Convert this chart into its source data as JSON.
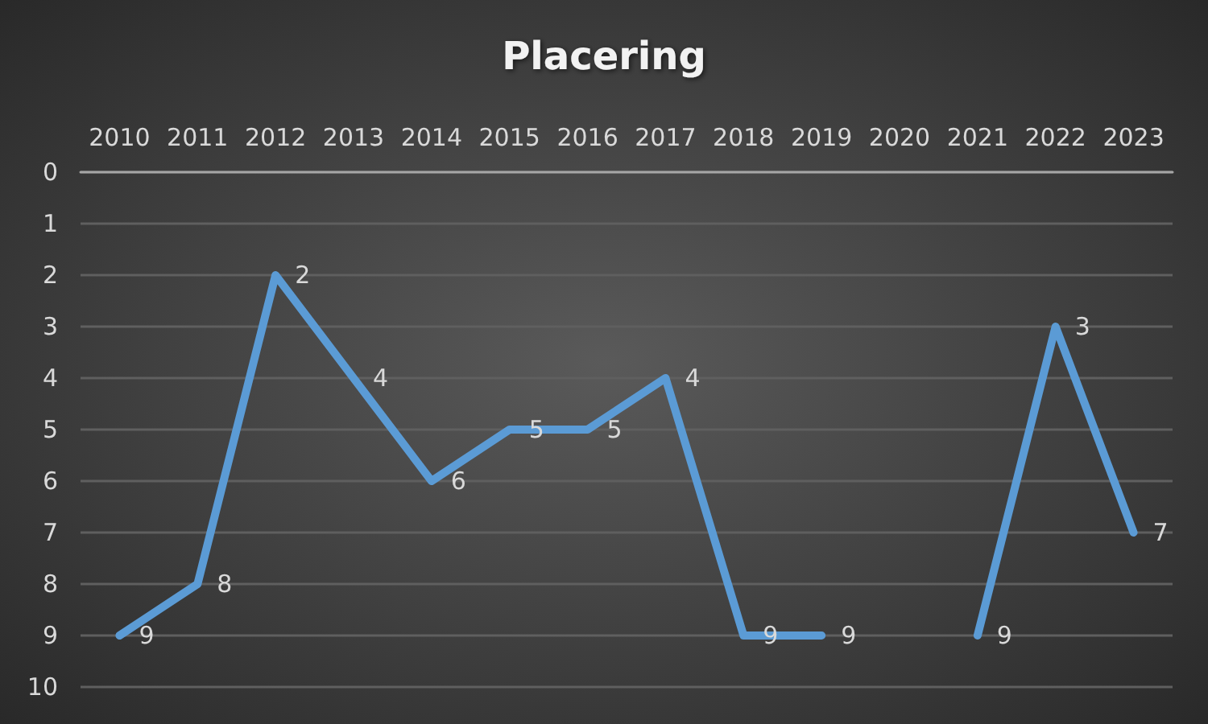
{
  "chart_data": {
    "type": "line",
    "title": "Placering",
    "categories": [
      "2010",
      "2011",
      "2012",
      "2013",
      "2014",
      "2015",
      "2016",
      "2017",
      "2018",
      "2019",
      "2020",
      "2021",
      "2022",
      "2023"
    ],
    "series": [
      {
        "color": "#5b9bd5",
        "values": [
          9,
          8,
          2,
          4,
          6,
          5,
          5,
          4,
          9,
          9,
          null,
          9,
          3,
          7
        ]
      }
    ],
    "ylim": [
      10,
      0
    ],
    "yticks": [
      0,
      1,
      2,
      3,
      4,
      5,
      6,
      7,
      8,
      9,
      10
    ],
    "grid": "y",
    "data_labels": true,
    "marker": "none",
    "line_style": "solid"
  }
}
